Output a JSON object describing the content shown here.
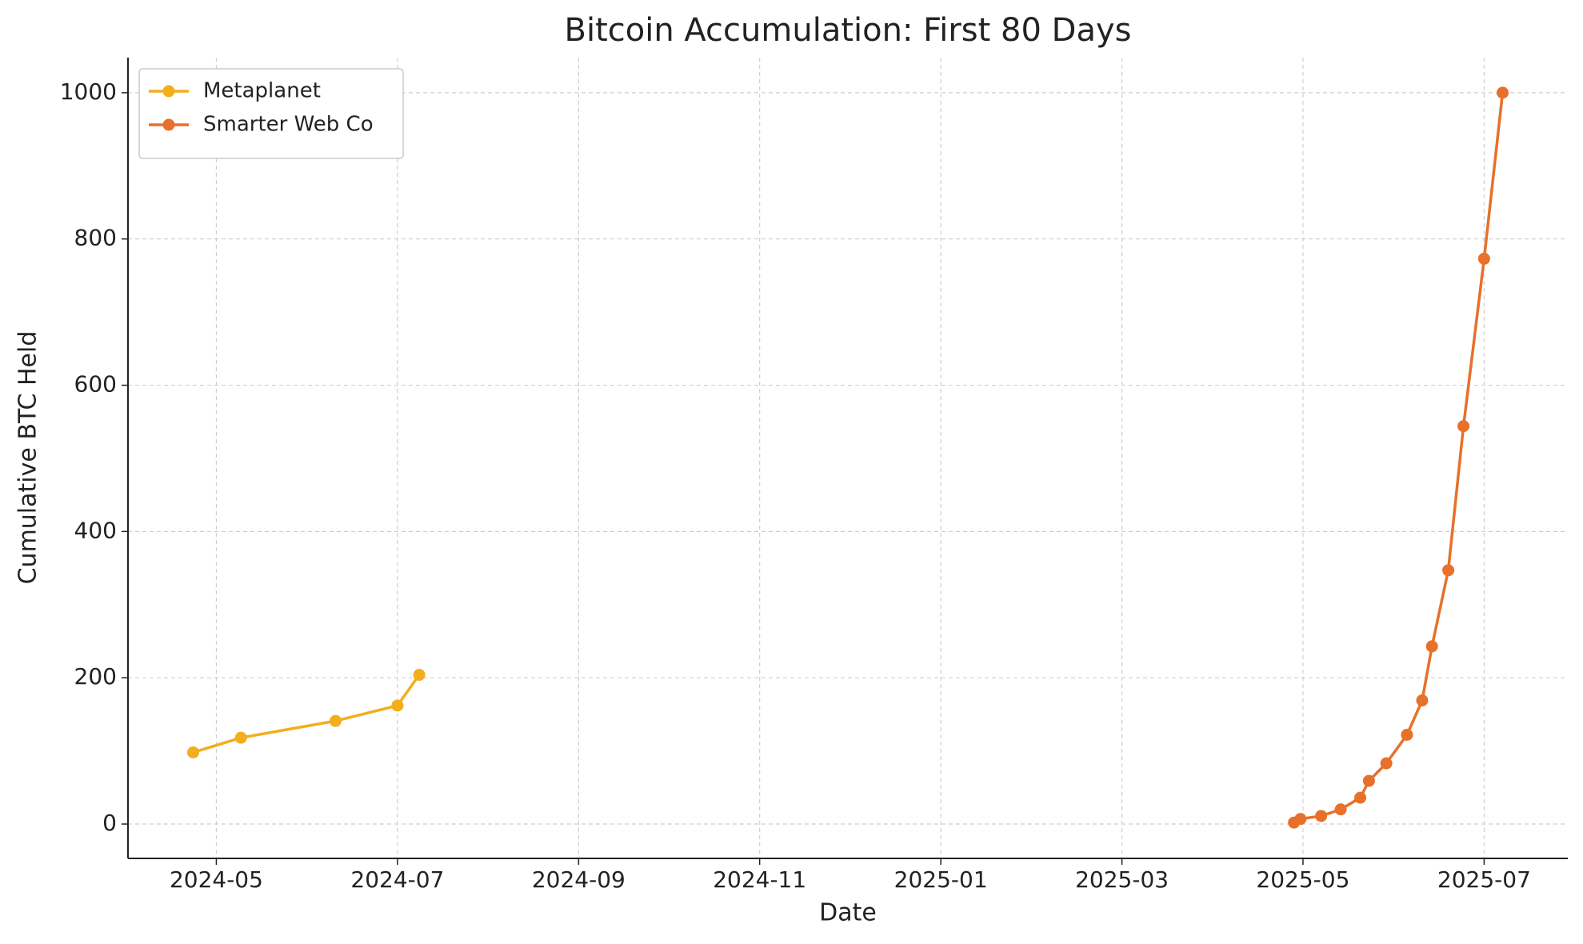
{
  "chart_data": {
    "type": "line",
    "title": "Bitcoin Accumulation: First 80 Days",
    "x_label": "Date",
    "y_label": "Cumulative BTC Held",
    "xlim": [
      2024.252,
      2025.577
    ],
    "ylim": [
      -47,
      1048
    ],
    "xticks": [
      {
        "value": 2024.3333,
        "label": "2024-05"
      },
      {
        "value": 2024.5,
        "label": "2024-07"
      },
      {
        "value": 2024.6667,
        "label": "2024-09"
      },
      {
        "value": 2024.8333,
        "label": "2024-11"
      },
      {
        "value": 2025.0,
        "label": "2025-01"
      },
      {
        "value": 2025.1667,
        "label": "2025-03"
      },
      {
        "value": 2025.3333,
        "label": "2025-05"
      },
      {
        "value": 2025.5,
        "label": "2025-07"
      }
    ],
    "yticks": [
      0,
      200,
      400,
      600,
      800,
      1000
    ],
    "grid": true,
    "legend": "upper left",
    "series": [
      {
        "name": "Metaplanet",
        "color": "#f2ae1c",
        "x": [
          2024.312,
          2024.356,
          2024.443,
          2024.5,
          2024.52
        ],
        "values": [
          98,
          118,
          141,
          162,
          204
        ]
      },
      {
        "name": "Smarter Web Co",
        "color": "#e8702a",
        "x": [
          2025.325,
          2025.331,
          2025.35,
          2025.368,
          2025.386,
          2025.394,
          2025.41,
          2025.429,
          2025.443,
          2025.452,
          2025.467,
          2025.481,
          2025.5,
          2025.517
        ],
        "values": [
          2,
          7,
          11,
          20,
          36,
          59,
          83,
          122,
          169,
          243,
          347,
          544,
          773,
          1000
        ]
      }
    ]
  }
}
